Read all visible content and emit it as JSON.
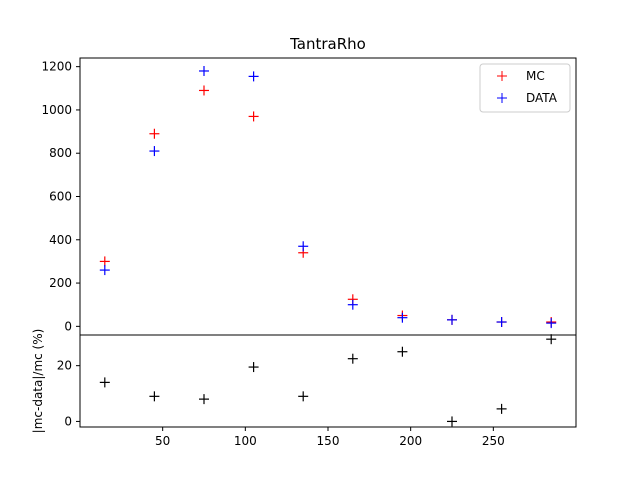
{
  "chart_data": [
    {
      "type": "scatter",
      "title": "TantraRho",
      "xlabel": "",
      "ylabel": "",
      "xlim": [
        0,
        300
      ],
      "ylim": [
        -40,
        1240
      ],
      "yticks": [
        0,
        200,
        400,
        600,
        800,
        1000,
        1200
      ],
      "legend": "top-right",
      "grid": false,
      "series": [
        {
          "name": "MC",
          "color": "#ff0000",
          "marker": "+",
          "x": [
            15,
            45,
            75,
            105,
            135,
            165,
            195,
            225,
            255,
            285
          ],
          "y": [
            300,
            890,
            1090,
            970,
            340,
            125,
            50,
            30,
            20,
            20
          ]
        },
        {
          "name": "DATA",
          "color": "#0000ff",
          "marker": "+",
          "x": [
            15,
            45,
            75,
            105,
            135,
            165,
            195,
            225,
            255,
            285
          ],
          "y": [
            260,
            810,
            1180,
            1155,
            370,
            100,
            40,
            30,
            20,
            15
          ]
        }
      ]
    },
    {
      "type": "scatter",
      "title": "",
      "xlabel": "",
      "ylabel": "|mc-data|/mc (%)",
      "xlim": [
        0,
        300
      ],
      "ylim": [
        -2,
        31
      ],
      "xticks": [
        50,
        100,
        150,
        200,
        250
      ],
      "yticks": [
        0,
        20
      ],
      "grid": false,
      "series": [
        {
          "color": "#000000",
          "marker": "+",
          "x": [
            15,
            45,
            75,
            105,
            135,
            165,
            195,
            225,
            255,
            285
          ],
          "y": [
            14,
            9,
            8,
            19.5,
            9,
            22.5,
            25,
            0,
            4.5,
            29.5
          ]
        }
      ]
    }
  ]
}
